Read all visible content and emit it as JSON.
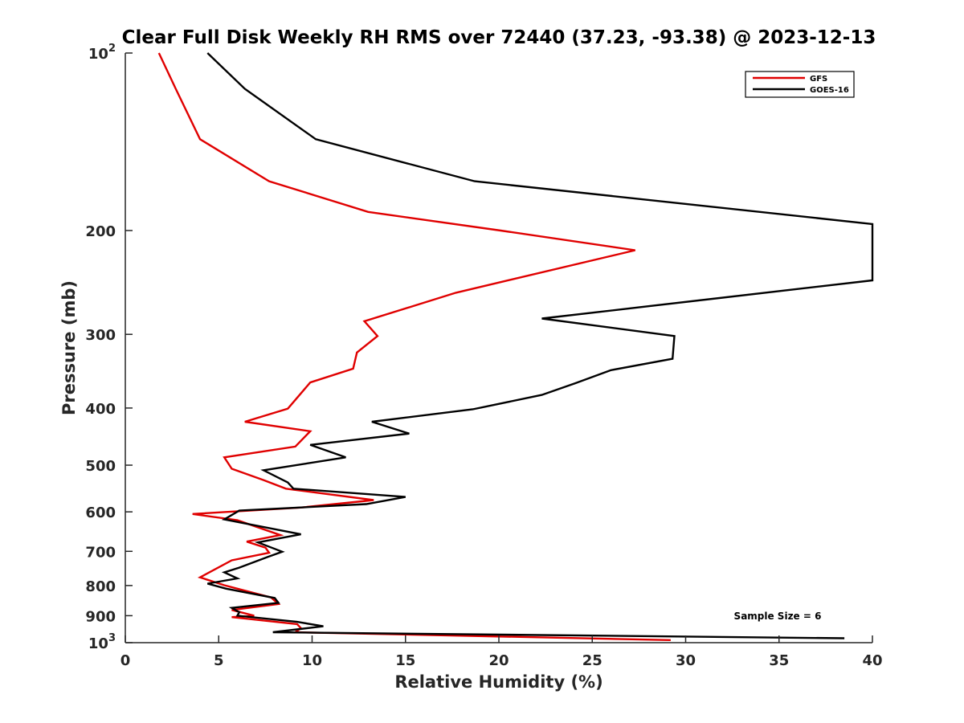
{
  "chart_data": {
    "type": "line",
    "title": "Clear Full Disk Weekly RH RMS over 72440 (37.23, -93.38) @ 2023-12-13",
    "xlabel": "Relative Humidity (%)",
    "ylabel": "Pressure (mb)",
    "xlim": [
      0,
      40
    ],
    "ylim": [
      100,
      1000
    ],
    "y_scale": "log",
    "y_reversed": true,
    "grid": false,
    "legend_position": "top-right",
    "x_ticks": [
      0,
      5,
      10,
      15,
      20,
      25,
      30,
      35,
      40
    ],
    "x_tick_labels": [
      "0",
      "5",
      "10",
      "15",
      "20",
      "25",
      "30",
      "35",
      "40"
    ],
    "y_ticks": [
      100,
      200,
      300,
      400,
      500,
      600,
      700,
      800,
      900,
      1000
    ],
    "y_tick_labels": [
      {
        "base": "10",
        "exp": "2"
      },
      {
        "base": "200",
        "exp": ""
      },
      {
        "base": "300",
        "exp": ""
      },
      {
        "base": "400",
        "exp": ""
      },
      {
        "base": "500",
        "exp": ""
      },
      {
        "base": "600",
        "exp": ""
      },
      {
        "base": "700",
        "exp": ""
      },
      {
        "base": "800",
        "exp": ""
      },
      {
        "base": "900",
        "exp": ""
      },
      {
        "base": "10",
        "exp": "3"
      }
    ],
    "series": [
      {
        "name": "GFS",
        "color": "#e00000",
        "x": [
          1.8,
          2.7,
          4.0,
          7.7,
          13.0,
          20.1,
          27.3,
          17.7,
          12.8,
          13.5,
          12.4,
          12.2,
          9.9,
          8.7,
          6.4,
          9.9,
          9.1,
          5.3,
          5.7,
          7.4,
          8.6,
          13.3,
          9.4,
          3.6,
          6.0,
          8.3,
          6.5,
          7.5,
          7.7,
          5.7,
          4.0,
          5.3,
          7.8,
          8.2,
          5.7,
          6.9,
          5.7,
          9.2,
          9.4,
          9.1,
          29.2
        ],
        "y": [
          100,
          115,
          140,
          165,
          186,
          200,
          216,
          255,
          285,
          302,
          322,
          343,
          362,
          401,
          422,
          438,
          465,
          485,
          507,
          530,
          548,
          573,
          590,
          605,
          620,
          657,
          674,
          690,
          704,
          725,
          775,
          799,
          838,
          860,
          880,
          900,
          905,
          930,
          945,
          960,
          990
        ]
      },
      {
        "name": "GOES-16",
        "color": "#000000",
        "x": [
          4.4,
          6.4,
          10.2,
          18.7,
          40.0,
          40.0,
          22.3,
          29.4,
          29.3,
          26.0,
          24.1,
          22.3,
          18.6,
          13.2,
          15.2,
          9.9,
          11.8,
          7.4,
          8.7,
          9.0,
          15.0,
          12.9,
          6.1,
          5.3,
          9.4,
          7.1,
          8.4,
          7.6,
          6.1,
          5.3,
          6.0,
          4.4,
          5.4,
          8.0,
          8.2,
          5.7,
          6.1,
          6.0,
          9.2,
          10.6,
          7.9,
          38.5
        ],
        "y": [
          100,
          115,
          140,
          165,
          195,
          243,
          282,
          302,
          330,
          345,
          363,
          380,
          402,
          422,
          442,
          462,
          485,
          510,
          535,
          548,
          566,
          582,
          597,
          618,
          655,
          676,
          701,
          716,
          746,
          760,
          778,
          794,
          810,
          840,
          856,
          873,
          888,
          900,
          922,
          938,
          960,
          983
        ]
      }
    ],
    "annotations": [
      "Sample Size = 6"
    ]
  }
}
